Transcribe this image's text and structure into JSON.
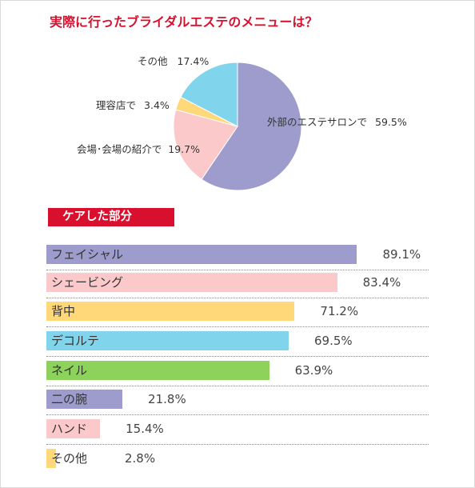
{
  "title": "実際に行ったブライダルエステのメニューは？",
  "chart_data": [
    {
      "type": "pie",
      "slices": [
        {
          "label": "外部のエステサロンで",
          "value": 59.5,
          "display": "59.5%",
          "color": "#9d9ccc"
        },
        {
          "label": "会場･会場の紹介で",
          "value": 19.7,
          "display": "19.7%",
          "color": "#fcc9ca"
        },
        {
          "label": "理容店で",
          "value": 3.4,
          "display": "3.4%",
          "color": "#ffd87a"
        },
        {
          "label": "その他",
          "value": 17.4,
          "display": "17.4%",
          "color": "#80d4ec"
        }
      ]
    },
    {
      "type": "bar",
      "orientation": "horizontal",
      "heading": "ケアした部分",
      "xlim": [
        0,
        100
      ],
      "items": [
        {
          "label": "フェイシャル",
          "value": 89.1,
          "display": "89.1%",
          "color": "#9d9ccc"
        },
        {
          "label": "シェービング",
          "value": 83.4,
          "display": "83.4%",
          "color": "#fcc9ca"
        },
        {
          "label": "背中",
          "value": 71.2,
          "display": "71.2%",
          "color": "#ffd87a"
        },
        {
          "label": "デコルテ",
          "value": 69.5,
          "display": "69.5%",
          "color": "#80d4ec"
        },
        {
          "label": "ネイル",
          "value": 63.9,
          "display": "63.9%",
          "color": "#8cd25b"
        },
        {
          "label": "二の腕",
          "value": 21.8,
          "display": "21.8%",
          "color": "#9d9ccc"
        },
        {
          "label": "ハンド",
          "value": 15.4,
          "display": "15.4%",
          "color": "#fcc9ca"
        },
        {
          "label": "その他",
          "value": 2.8,
          "display": "2.8%",
          "color": "#ffd87a"
        }
      ]
    }
  ]
}
